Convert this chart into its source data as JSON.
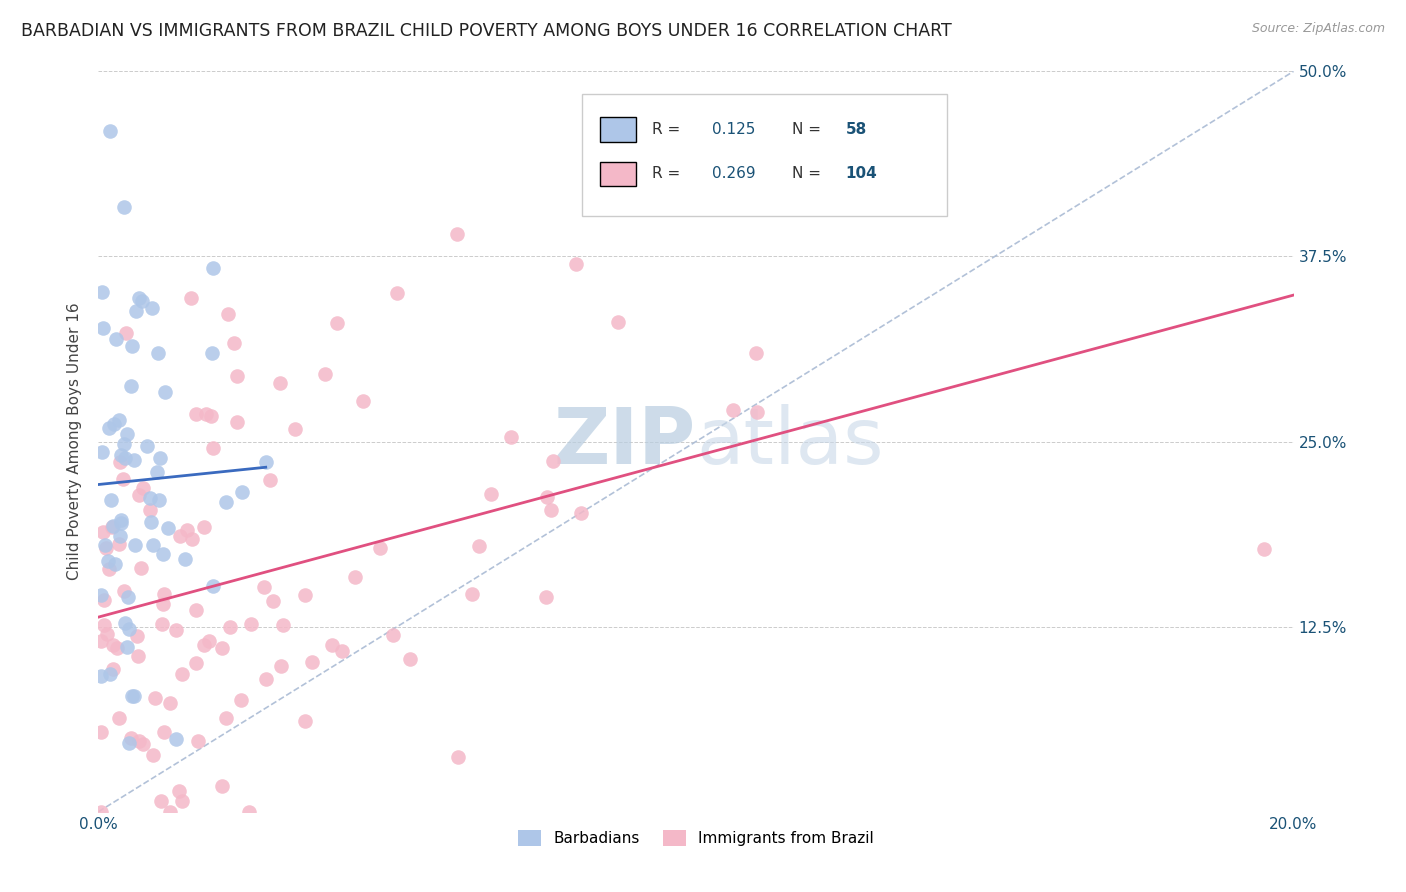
{
  "title": "BARBADIAN VS IMMIGRANTS FROM BRAZIL CHILD POVERTY AMONG BOYS UNDER 16 CORRELATION CHART",
  "source": "Source: ZipAtlas.com",
  "ylabel": "Child Poverty Among Boys Under 16",
  "xlim": [
    0.0,
    0.2
  ],
  "ylim": [
    0.0,
    0.5
  ],
  "xtick_positions": [
    0.0,
    0.04,
    0.08,
    0.12,
    0.16,
    0.2
  ],
  "xticklabels": [
    "0.0%",
    "",
    "",
    "",
    "",
    "20.0%"
  ],
  "ytick_positions": [
    0.0,
    0.125,
    0.25,
    0.375,
    0.5
  ],
  "yticklabels": [
    "",
    "12.5%",
    "25.0%",
    "37.5%",
    "50.0%"
  ],
  "barbadian_R": 0.125,
  "barbadian_N": 58,
  "brazil_R": 0.269,
  "brazil_N": 104,
  "barbadian_color": "#aec6e8",
  "brazil_color": "#f4b8c8",
  "barbadian_line_color": "#3a6abf",
  "brazil_line_color": "#e05080",
  "diag_line_color": "#aabbd4",
  "background_color": "#ffffff",
  "grid_color": "#cccccc",
  "title_fontsize": 12.5,
  "tick_fontsize": 11,
  "tick_color": "#1a5276",
  "watermark_color": "#ccd8e8",
  "axis_label_fontsize": 11,
  "legend_R_color": "#1a5276",
  "legend_N_color": "#1a5276"
}
